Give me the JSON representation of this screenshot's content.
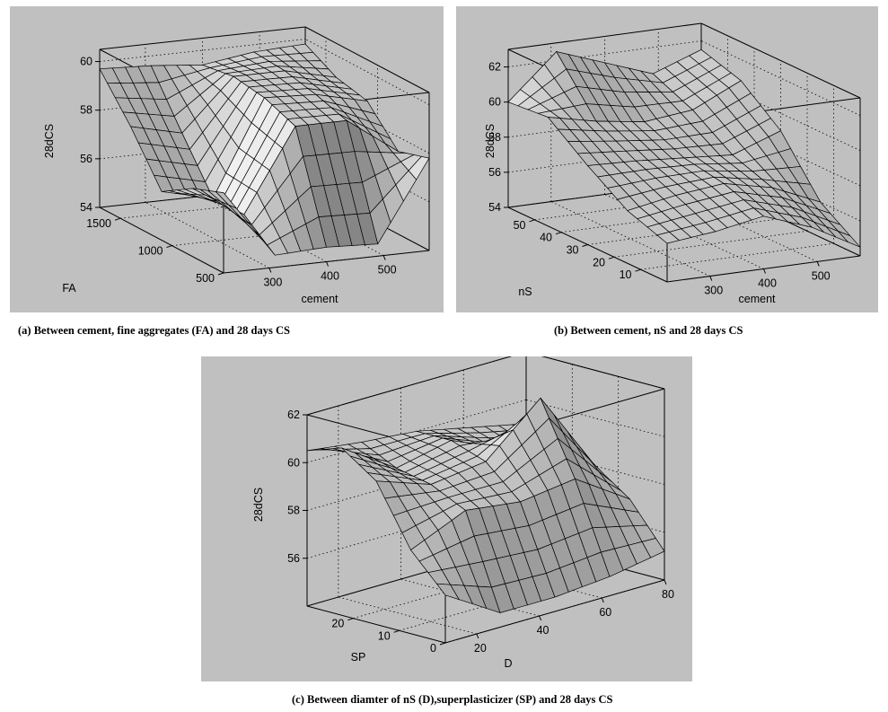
{
  "chart_data": [
    {
      "type": "surface3d",
      "caption": "(a) Between cement, fine aggregates (FA) and 28 days CS",
      "xlabel": "cement",
      "ylabel": "FA",
      "zlabel": "28dCS",
      "xlim": [
        220,
        580
      ],
      "ylim": [
        500,
        1700
      ],
      "zlim": [
        54,
        60.5
      ],
      "xticks": [
        "300",
        "400",
        "500"
      ],
      "yticks": [
        "500",
        "1000",
        "1500"
      ],
      "zticks": [
        "54",
        "56",
        "58",
        "60"
      ],
      "grid": true,
      "surface": {
        "x": [
          220,
          310,
          400,
          490,
          580
        ],
        "y": [
          500,
          800,
          1100,
          1400,
          1700
        ],
        "z": [
          [
            57.3,
            54.5,
            54.6,
            54.5,
            57.8
          ],
          [
            56.8,
            55.5,
            58.9,
            58.9,
            57.4
          ],
          [
            56.0,
            55.5,
            59.4,
            59.3,
            58.8
          ],
          [
            58.0,
            57.5,
            59.6,
            59.6,
            59.1
          ],
          [
            59.7,
            59.6,
            59.4,
            59.7,
            59.8
          ]
        ]
      }
    },
    {
      "type": "surface3d",
      "caption": "(b) Between cement, nS and 28 days CS",
      "xlabel": "cement",
      "ylabel": "nS",
      "zlabel": "28dCS",
      "xlim": [
        220,
        580
      ],
      "ylim": [
        0,
        60
      ],
      "zlim": [
        54,
        63
      ],
      "xticks": [
        "300",
        "400",
        "500"
      ],
      "yticks": [
        "10",
        "20",
        "30",
        "40",
        "50"
      ],
      "zticks": [
        "54",
        "56",
        "58",
        "60",
        "62"
      ],
      "grid": true,
      "surface": {
        "x": [
          220,
          310,
          400,
          490,
          580
        ],
        "y": [
          0,
          15,
          30,
          45,
          60
        ],
        "z": [
          [
            56.2,
            56.5,
            57.0,
            56.0,
            54.5
          ],
          [
            57.0,
            57.5,
            57.8,
            57.2,
            56.0
          ],
          [
            58.5,
            58.4,
            58.2,
            58.0,
            59.0
          ],
          [
            60.2,
            59.6,
            59.2,
            59.5,
            60.8
          ],
          [
            60.0,
            62.5,
            61.5,
            60.5,
            61.5
          ]
        ]
      }
    },
    {
      "type": "surface3d",
      "caption": "(c) Between diamter of nS (D),superplasticizer (SP) and 28 days CS",
      "xlabel": "D",
      "ylabel": "SP",
      "zlabel": "28dCS",
      "xlim": [
        10,
        80
      ],
      "ylim": [
        0,
        30
      ],
      "zlim": [
        54,
        62
      ],
      "xticks": [
        "20",
        "40",
        "60",
        "80"
      ],
      "yticks": [
        "0",
        "10",
        "20"
      ],
      "zticks": [
        "56",
        "58",
        "60",
        "62"
      ],
      "grid": true,
      "surface": {
        "x": [
          10,
          27.5,
          45,
          62.5,
          80
        ],
        "y": [
          0,
          7.5,
          15,
          22.5,
          30
        ],
        "z": [
          [
            56.0,
            54.6,
            54.6,
            54.8,
            55.2
          ],
          [
            57.5,
            58.5,
            58.2,
            58.5,
            57.0
          ],
          [
            60.0,
            59.2,
            59.5,
            61.5,
            58.0
          ],
          [
            61.0,
            59.5,
            60.0,
            59.0,
            58.5
          ],
          [
            60.5,
            60.2,
            60.0,
            59.5,
            59.0
          ]
        ]
      }
    }
  ]
}
